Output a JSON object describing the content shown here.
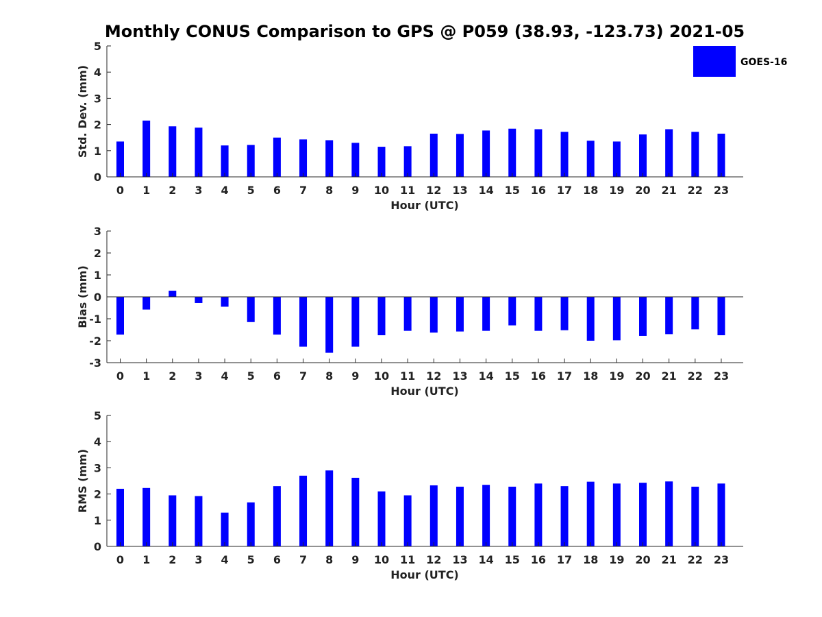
{
  "title": "Monthly CONUS Comparison to GPS @ P059 (38.93, -123.73) 2021-05",
  "legend": {
    "label": "GOES-16",
    "placement": "top-right"
  },
  "colors": {
    "bar": "#0000ff",
    "axis": "#262626",
    "background": "#ffffff"
  },
  "chart_data": [
    {
      "type": "bar",
      "title": "Monthly CONUS Comparison to GPS @ P059 (38.93, -123.73) 2021-05",
      "xlabel": "Hour (UTC)",
      "ylabel": "Std. Dev. (mm)",
      "ylim": [
        0,
        5
      ],
      "yticks": [
        0,
        1,
        2,
        3,
        4,
        5
      ],
      "grid": false,
      "categories": [
        "0",
        "1",
        "2",
        "3",
        "4",
        "5",
        "6",
        "7",
        "8",
        "9",
        "10",
        "11",
        "12",
        "13",
        "14",
        "15",
        "16",
        "17",
        "18",
        "19",
        "20",
        "21",
        "22",
        "23"
      ],
      "series": [
        {
          "name": "GOES-16",
          "values": [
            1.35,
            2.15,
            1.93,
            1.88,
            1.2,
            1.22,
            1.5,
            1.43,
            1.4,
            1.3,
            1.15,
            1.17,
            1.65,
            1.64,
            1.77,
            1.84,
            1.82,
            1.72,
            1.38,
            1.35,
            1.62,
            1.82,
            1.72,
            1.65
          ]
        }
      ]
    },
    {
      "type": "bar",
      "xlabel": "Hour (UTC)",
      "ylabel": "Bias (mm)",
      "ylim": [
        -3,
        3
      ],
      "yticks": [
        -3,
        -2,
        -1,
        0,
        1,
        2,
        3
      ],
      "grid": false,
      "categories": [
        "0",
        "1",
        "2",
        "3",
        "4",
        "5",
        "6",
        "7",
        "8",
        "9",
        "10",
        "11",
        "12",
        "13",
        "14",
        "15",
        "16",
        "17",
        "18",
        "19",
        "20",
        "21",
        "22",
        "23"
      ],
      "series": [
        {
          "name": "GOES-16",
          "values": [
            -1.72,
            -0.58,
            0.28,
            -0.28,
            -0.45,
            -1.15,
            -1.72,
            -2.27,
            -2.55,
            -2.27,
            -1.75,
            -1.55,
            -1.63,
            -1.58,
            -1.55,
            -1.3,
            -1.55,
            -1.52,
            -2.0,
            -1.98,
            -1.78,
            -1.7,
            -1.48,
            -1.75
          ]
        }
      ]
    },
    {
      "type": "bar",
      "xlabel": "Hour (UTC)",
      "ylabel": "RMS (mm)",
      "ylim": [
        0,
        5
      ],
      "yticks": [
        0,
        1,
        2,
        3,
        4,
        5
      ],
      "grid": false,
      "categories": [
        "0",
        "1",
        "2",
        "3",
        "4",
        "5",
        "6",
        "7",
        "8",
        "9",
        "10",
        "11",
        "12",
        "13",
        "14",
        "15",
        "16",
        "17",
        "18",
        "19",
        "20",
        "21",
        "22",
        "23"
      ],
      "series": [
        {
          "name": "GOES-16",
          "values": [
            2.2,
            2.23,
            1.95,
            1.92,
            1.29,
            1.68,
            2.3,
            2.7,
            2.9,
            2.62,
            2.1,
            1.95,
            2.33,
            2.28,
            2.35,
            2.28,
            2.4,
            2.3,
            2.47,
            2.4,
            2.43,
            2.48,
            2.28,
            2.4
          ]
        }
      ]
    }
  ]
}
